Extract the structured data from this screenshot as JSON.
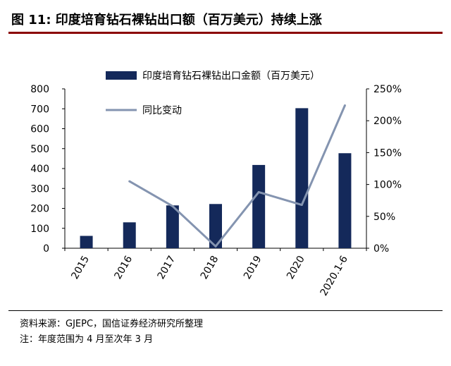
{
  "header": {
    "title": "图 11:  印度培育钻石裸钻出口额（百万美元）持续上涨"
  },
  "footer": {
    "source": "资料来源：GJEPC，国信证券经济研究所整理",
    "note": "注：年度范围为 4 月至次年 3 月"
  },
  "colors": {
    "bar": "#14295a",
    "line": "#8494b0",
    "title_rule": "#8a0000"
  },
  "chart_data": {
    "type": "bar",
    "categories": [
      "2015",
      "2016",
      "2017",
      "2018",
      "2019",
      "2020",
      "2020.1-6"
    ],
    "series": [
      {
        "name": "印度培育钻石裸钻出口金额（百万美元）",
        "type": "bar",
        "axis": "left",
        "values": [
          62,
          130,
          215,
          222,
          418,
          703,
          477
        ]
      },
      {
        "name": "同比变动",
        "type": "line",
        "axis": "right",
        "values": [
          null,
          1.05,
          0.66,
          0.03,
          0.88,
          0.68,
          2.24
        ]
      }
    ],
    "left_axis": {
      "min": 0,
      "max": 800,
      "ticks": [
        "0",
        "100",
        "200",
        "300",
        "400",
        "500",
        "600",
        "700",
        "800"
      ]
    },
    "right_axis": {
      "min": 0,
      "max": 2.5,
      "ticks": [
        "0%",
        "50%",
        "100%",
        "150%",
        "200%",
        "250%"
      ]
    },
    "grid": false,
    "legend_position": "top-left"
  }
}
